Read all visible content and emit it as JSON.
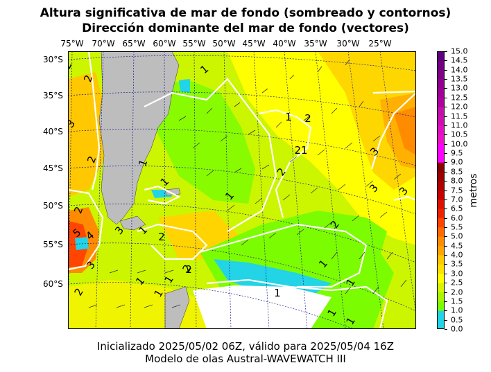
{
  "title_line1": "Altura significativa de mar de fondo (sombreado y contornos)",
  "title_line2": "Dirección dominante del mar de fondo (vectores)",
  "footer_line1": "Inicializado 2025/05/02 06Z, válido para 2025/05/04 16Z",
  "footer_line2": "Modelo de olas Austral-WAVEWATCH III",
  "longitude_labels": [
    "75°W",
    "70°W",
    "65°W",
    "60°W",
    "55°W",
    "50°W",
    "45°W",
    "40°W",
    "35°W",
    "30°W",
    "25°W"
  ],
  "latitude_labels": [
    "30°S",
    "35°S",
    "40°S",
    "45°S",
    "50°S",
    "55°S",
    "60°S"
  ],
  "colorbar": {
    "unit_label": "metros",
    "tick_labels": [
      "0.0",
      "0.5",
      "1.0",
      "1.5",
      "2.0",
      "2.5",
      "3.0",
      "3.5",
      "4.0",
      "4.5",
      "5.0",
      "5.5",
      "6.0",
      "6.5",
      "7.0",
      "7.5",
      "8.0",
      "8.5",
      "9.0",
      "9.5",
      "10.0",
      "10.5",
      "11.0",
      "11.5",
      "12.0",
      "12.5",
      "13.0",
      "13.5",
      "14.0",
      "14.5",
      "15.0"
    ],
    "colors": [
      "#22d4e6",
      "#22d4e6",
      "#7cfc00",
      "#aaf500",
      "#d8f500",
      "#ffff00",
      "#ffe000",
      "#ffc800",
      "#ffa500",
      "#ff8c00",
      "#ff6a00",
      "#ff4500",
      "#ee2200",
      "#dd1100",
      "#c80000",
      "#b00000",
      "#990000",
      "#880000",
      "#ff00ff",
      "#ff00ff",
      "#ee10c8",
      "#e010c0",
      "#cc10b0",
      "#c010a8",
      "#b000a0",
      "#a00098",
      "#900090",
      "#800088",
      "#700080",
      "#600080"
    ]
  },
  "contour_labels": [
    "1",
    "1",
    "1",
    "1",
    "1",
    "1",
    "1",
    "1",
    "1",
    "1",
    "1",
    "1",
    "1",
    "1",
    "2",
    "2",
    "2",
    "2",
    "2",
    "2",
    "2",
    "2",
    "2",
    "2",
    "2",
    "21",
    "3",
    "3",
    "3",
    "3",
    "3",
    "3",
    "4",
    "5"
  ],
  "colors": {
    "land": "#bdbdbd",
    "graticule": "#1a1a8c",
    "contour": "#ffffff",
    "vector": "#333333"
  }
}
